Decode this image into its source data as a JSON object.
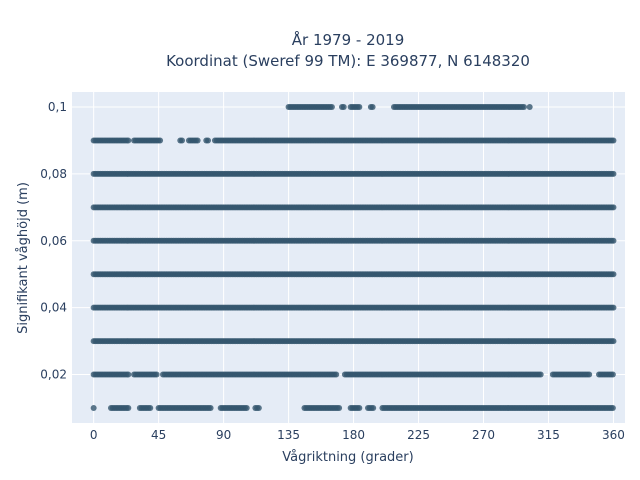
{
  "chart_data": {
    "type": "scatter",
    "title": "År 1979 - 2019",
    "subtitle": "Koordinat (Sweref 99 TM): E 369877, N 6148320",
    "xlabel": "Vågriktning (grader)",
    "ylabel": "Signifikant våghöjd (m)",
    "xlim": [
      -15,
      368
    ],
    "ylim": [
      0.0055,
      0.1045
    ],
    "xticks": [
      0,
      45,
      90,
      135,
      180,
      225,
      270,
      315,
      360
    ],
    "yticks": [
      0.02,
      0.04,
      0.06,
      0.08,
      0.1
    ],
    "xtick_labels": [
      "0",
      "45",
      "90",
      "135",
      "180",
      "225",
      "270",
      "315",
      "360"
    ],
    "ytick_labels": [
      "0,02",
      "0,04",
      "0,06",
      "0,08",
      "0,1"
    ],
    "grid": true,
    "marker_color": "#34566e",
    "background_color": "#e5ecf6",
    "series": [
      {
        "bands": [
          {
            "y": 0.01,
            "segments": [
              [
                0,
                0
              ],
              [
                12,
                24
              ],
              [
                32,
                40
              ],
              [
                45,
                82
              ],
              [
                88,
                106
              ],
              [
                112,
                115
              ],
              [
                146,
                170
              ],
              [
                178,
                184
              ],
              [
                190,
                194
              ],
              [
                200,
                360
              ]
            ]
          },
          {
            "y": 0.02,
            "segments": [
              [
                0,
                24
              ],
              [
                28,
                44
              ],
              [
                48,
                168
              ],
              [
                174,
                310
              ],
              [
                318,
                344
              ],
              [
                350,
                360
              ]
            ]
          },
          {
            "y": 0.03,
            "segments": [
              [
                0,
                360
              ]
            ]
          },
          {
            "y": 0.04,
            "segments": [
              [
                0,
                360
              ]
            ]
          },
          {
            "y": 0.05,
            "segments": [
              [
                0,
                360
              ]
            ]
          },
          {
            "y": 0.06,
            "segments": [
              [
                0,
                360
              ]
            ]
          },
          {
            "y": 0.07,
            "segments": [
              [
                0,
                360
              ]
            ]
          },
          {
            "y": 0.08,
            "segments": [
              [
                0,
                360
              ]
            ]
          },
          {
            "y": 0.09,
            "segments": [
              [
                0,
                24
              ],
              [
                28,
                46
              ],
              [
                60,
                62
              ],
              [
                66,
                72
              ],
              [
                78,
                80
              ],
              [
                84,
                360
              ]
            ]
          },
          {
            "y": 0.1,
            "segments": [
              [
                135,
                166
              ],
              [
                172,
                174
              ],
              [
                178,
                184
              ],
              [
                192,
                194
              ],
              [
                208,
                298
              ],
              [
                302,
                303
              ]
            ]
          }
        ]
      }
    ]
  }
}
